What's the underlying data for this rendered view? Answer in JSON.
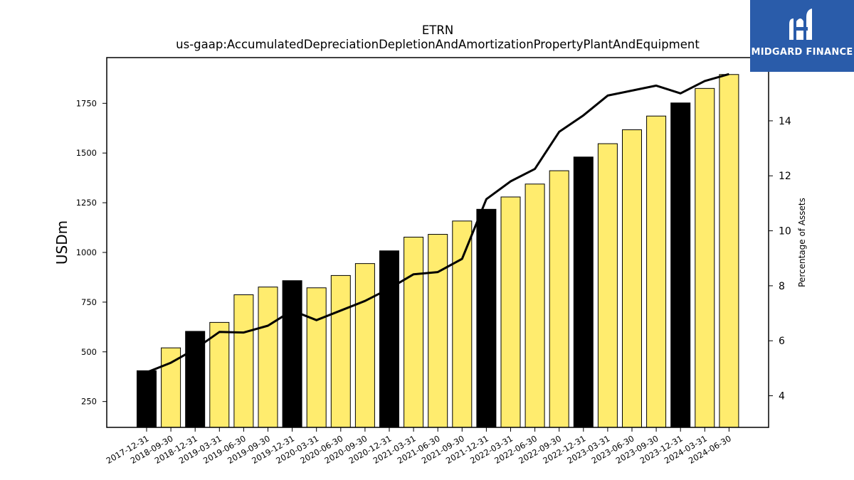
{
  "chart_data": {
    "type": "bar+line",
    "title": "ETRN",
    "subtitle": "us-gaap:AccumulatedDepreciationDepletionAndAmortizationPropertyPlantAndEquipment",
    "ylabel_left": "USDm",
    "ylabel_right": "Percentage of Assets",
    "ylim_left": [
      120,
      1980
    ],
    "ylim_right": [
      2.85,
      16.3
    ],
    "yticks_left": [
      250,
      500,
      750,
      1000,
      1250,
      1500,
      1750
    ],
    "yticks_right": [
      4,
      6,
      8,
      10,
      12,
      14
    ],
    "categories": [
      "2017-12-31",
      "2018-09-30",
      "2018-12-31",
      "2019-03-31",
      "2019-06-30",
      "2019-09-30",
      "2019-12-31",
      "2020-03-31",
      "2020-06-30",
      "2020-09-30",
      "2020-12-31",
      "2021-03-31",
      "2021-06-30",
      "2021-09-30",
      "2021-12-31",
      "2022-03-31",
      "2022-06-30",
      "2022-09-30",
      "2022-12-31",
      "2023-03-31",
      "2023-06-30",
      "2023-09-30",
      "2023-12-31",
      "2024-03-31",
      "2024-06-30"
    ],
    "series": [
      {
        "type": "bar",
        "values": [
          405,
          520,
          603,
          648,
          787,
          826,
          858,
          822,
          884,
          944,
          1008,
          1077,
          1091,
          1158,
          1217,
          1279,
          1344,
          1411,
          1480,
          1547,
          1617,
          1686,
          1752,
          1825,
          1895
        ],
        "colors": [
          "#000000",
          "#ffec6e",
          "#000000",
          "#ffec6e",
          "#ffec6e",
          "#ffec6e",
          "#000000",
          "#ffec6e",
          "#ffec6e",
          "#ffec6e",
          "#000000",
          "#ffec6e",
          "#ffec6e",
          "#ffec6e",
          "#000000",
          "#ffec6e",
          "#ffec6e",
          "#ffec6e",
          "#000000",
          "#ffec6e",
          "#ffec6e",
          "#ffec6e",
          "#000000",
          "#ffec6e",
          "#ffec6e"
        ]
      },
      {
        "type": "line",
        "axis": "right",
        "values": [
          4.85,
          5.2,
          5.7,
          6.32,
          6.3,
          6.55,
          7.1,
          6.75,
          7.1,
          7.45,
          7.9,
          8.42,
          8.5,
          8.98,
          11.15,
          11.8,
          12.25,
          13.6,
          14.2,
          14.92,
          15.1,
          15.28,
          15.0,
          15.45,
          15.7
        ],
        "color": "#000000"
      }
    ],
    "grid": false
  },
  "logo": {
    "text": "MIDGARD FINANCE",
    "background": "#2a5caa"
  }
}
